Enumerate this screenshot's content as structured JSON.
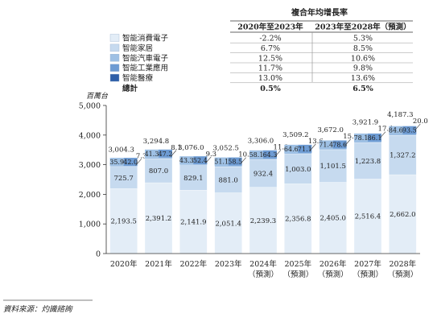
{
  "cagr_table": {
    "title": "複合年均增長率",
    "headers": [
      "2020年至2023年",
      "2023年至2028年（預測）"
    ],
    "rows": [
      {
        "name": "智能消費電子",
        "color": "#e3edf7",
        "c1": "-2.2%",
        "c2": "5.3%"
      },
      {
        "name": "智能家居",
        "color": "#c6daef",
        "c1": "6.7%",
        "c2": "8.5%"
      },
      {
        "name": "智能汽車電子",
        "color": "#9ec0e4",
        "c1": "12.5%",
        "c2": "10.6%"
      },
      {
        "name": "智能工業應用",
        "color": "#6d9bd3",
        "c1": "11.7%",
        "c2": "9.8%"
      },
      {
        "name": "智能醫療",
        "color": "#2e5fa8",
        "c1": "13.0%",
        "c2": "13.6%"
      }
    ],
    "total": {
      "name": "總計",
      "c1": "0.5%",
      "c2": "6.5%"
    }
  },
  "footer": {
    "source": "資料來源：灼識諮詢"
  },
  "chart_data": {
    "type": "bar",
    "stacked": true,
    "ylabel": "百萬台",
    "ylim": [
      0,
      5000
    ],
    "yticks": [
      "0",
      "1,000",
      "2,000",
      "3,000",
      "4,000",
      "5,000"
    ],
    "categories": [
      [
        "2020年"
      ],
      [
        "2021年"
      ],
      [
        "2022年"
      ],
      [
        "2023年"
      ],
      [
        "2024年",
        "（預測）"
      ],
      [
        "2025年",
        "（預測）"
      ],
      [
        "2026年",
        "（預測）"
      ],
      [
        "2027年",
        "（預測）"
      ],
      [
        "2028年",
        "（預測）"
      ]
    ],
    "series": [
      {
        "name": "智能消費電子",
        "color": "#e3edf7",
        "values": [
          2193.5,
          2391.2,
          2141.9,
          2051.4,
          2239.3,
          2356.8,
          2405.0,
          2516.4,
          2662.0
        ],
        "labels": [
          "2,193.5",
          "2,391.2",
          "2,141.9",
          "2,051.4",
          "2,239.3",
          "2,356.8",
          "2,405.0",
          "2,516.4",
          "2,662.0"
        ]
      },
      {
        "name": "智能家居",
        "color": "#c6daef",
        "values": [
          725.7,
          807.0,
          829.1,
          881.0,
          932.4,
          1003.0,
          1101.5,
          1223.8,
          1327.2
        ],
        "labels": [
          "725.7",
          "807.0",
          "829.1",
          "881.0",
          "932.4",
          "1,003.0",
          "1,101.5",
          "1,223.8",
          "1,327.2"
        ]
      },
      {
        "name": "智能汽車電子",
        "color": "#9ec0e4",
        "values": [
          35.9,
          41.3,
          43.3,
          51.1,
          58.1,
          64.6,
          71.4,
          78.1,
          84.6
        ],
        "labels": [
          "35.9",
          "41.3",
          "43.3",
          "51.1",
          "58.1",
          "64.6",
          "71.4",
          "78.1",
          "84.6"
        ]
      },
      {
        "name": "智能工業應用",
        "color": "#6d9bd3",
        "values": [
          42.0,
          47.2,
          52.4,
          58.5,
          64.3,
          71.1,
          78.6,
          86.1,
          93.5
        ],
        "labels": [
          "42.0",
          "47.2",
          "52.4",
          "58.5",
          "64.3",
          "71.1",
          "78.6",
          "86.1",
          "93.5"
        ]
      },
      {
        "name": "智能醫療",
        "color": "#2e5fa8",
        "values": [
          7.3,
          8.1,
          9.3,
          10.6,
          11.9,
          13.6,
          15.5,
          17.4,
          20.0
        ],
        "labels": [
          "7.3",
          "8.1",
          "9.3",
          "10.6",
          "11.9",
          "13.6",
          "15.5",
          "17.4",
          "20.0"
        ]
      }
    ],
    "totals": [
      "3,004.3",
      "3,294.8",
      "3,076.0",
      "3,052.5",
      "3,306.0",
      "3,509.2",
      "3,672.0",
      "3,921.9",
      "4,187.3"
    ]
  }
}
